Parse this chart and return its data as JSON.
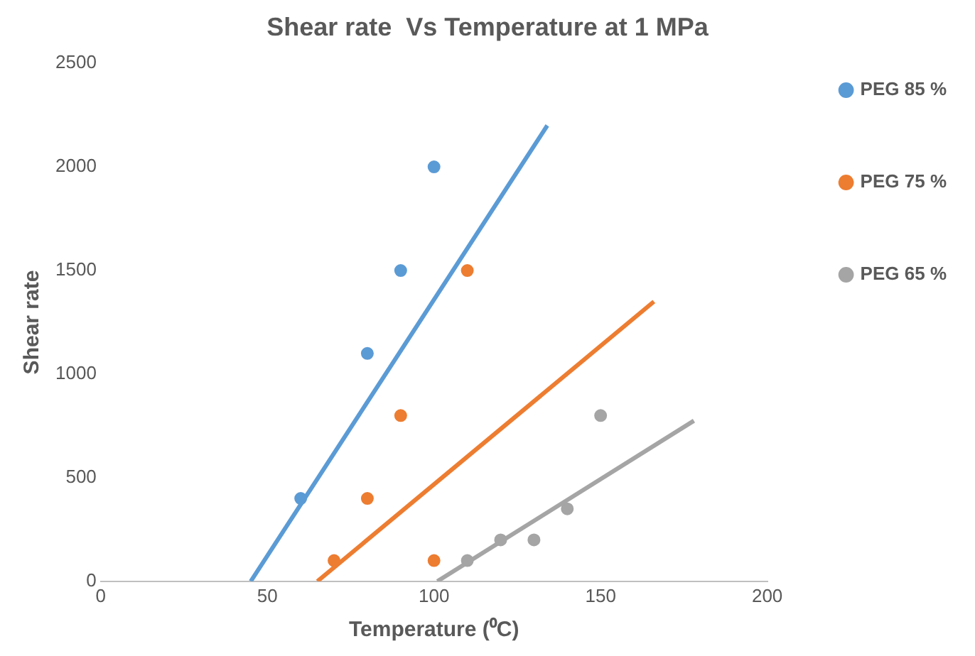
{
  "chart_data": {
    "type": "scatter",
    "title": "Shear rate  Vs Temperature at 1 MPa",
    "xlabel": "Temperature (⁰C)",
    "ylabel": "Shear rate",
    "xlim": [
      0,
      200
    ],
    "xticks": [
      0,
      50,
      100,
      150,
      200
    ],
    "ylim": [
      0,
      2500
    ],
    "yticks": [
      0,
      500,
      1000,
      1500,
      2000,
      2500
    ],
    "grid": false,
    "legend": "right",
    "marker": "circle",
    "series": [
      {
        "name": "PEG 85 %",
        "color": "#5b9bd5",
        "x": [
          60,
          80,
          90,
          100
        ],
        "values": [
          400,
          1100,
          1500,
          2000
        ]
      },
      {
        "name": "PEG 75 %",
        "color": "#ed7d31",
        "x": [
          70,
          80,
          90,
          100,
          110
        ],
        "values": [
          100,
          400,
          800,
          100,
          1500
        ]
      },
      {
        "name": "PEG 65 %",
        "color": "#a5a5a5",
        "x": [
          110,
          120,
          130,
          140,
          150
        ],
        "values": [
          100,
          200,
          200,
          350,
          800
        ]
      },
      {
        "type": "line",
        "marker": "none",
        "color": "#5b9bd5",
        "x": [
          45,
          134
        ],
        "values": [
          0,
          2200
        ]
      },
      {
        "type": "line",
        "marker": "none",
        "color": "#ed7d31",
        "x": [
          65,
          166
        ],
        "values": [
          0,
          1350
        ]
      },
      {
        "type": "line",
        "marker": "none",
        "color": "#a5a5a5",
        "x": [
          101,
          178
        ],
        "values": [
          0,
          775
        ]
      }
    ]
  }
}
